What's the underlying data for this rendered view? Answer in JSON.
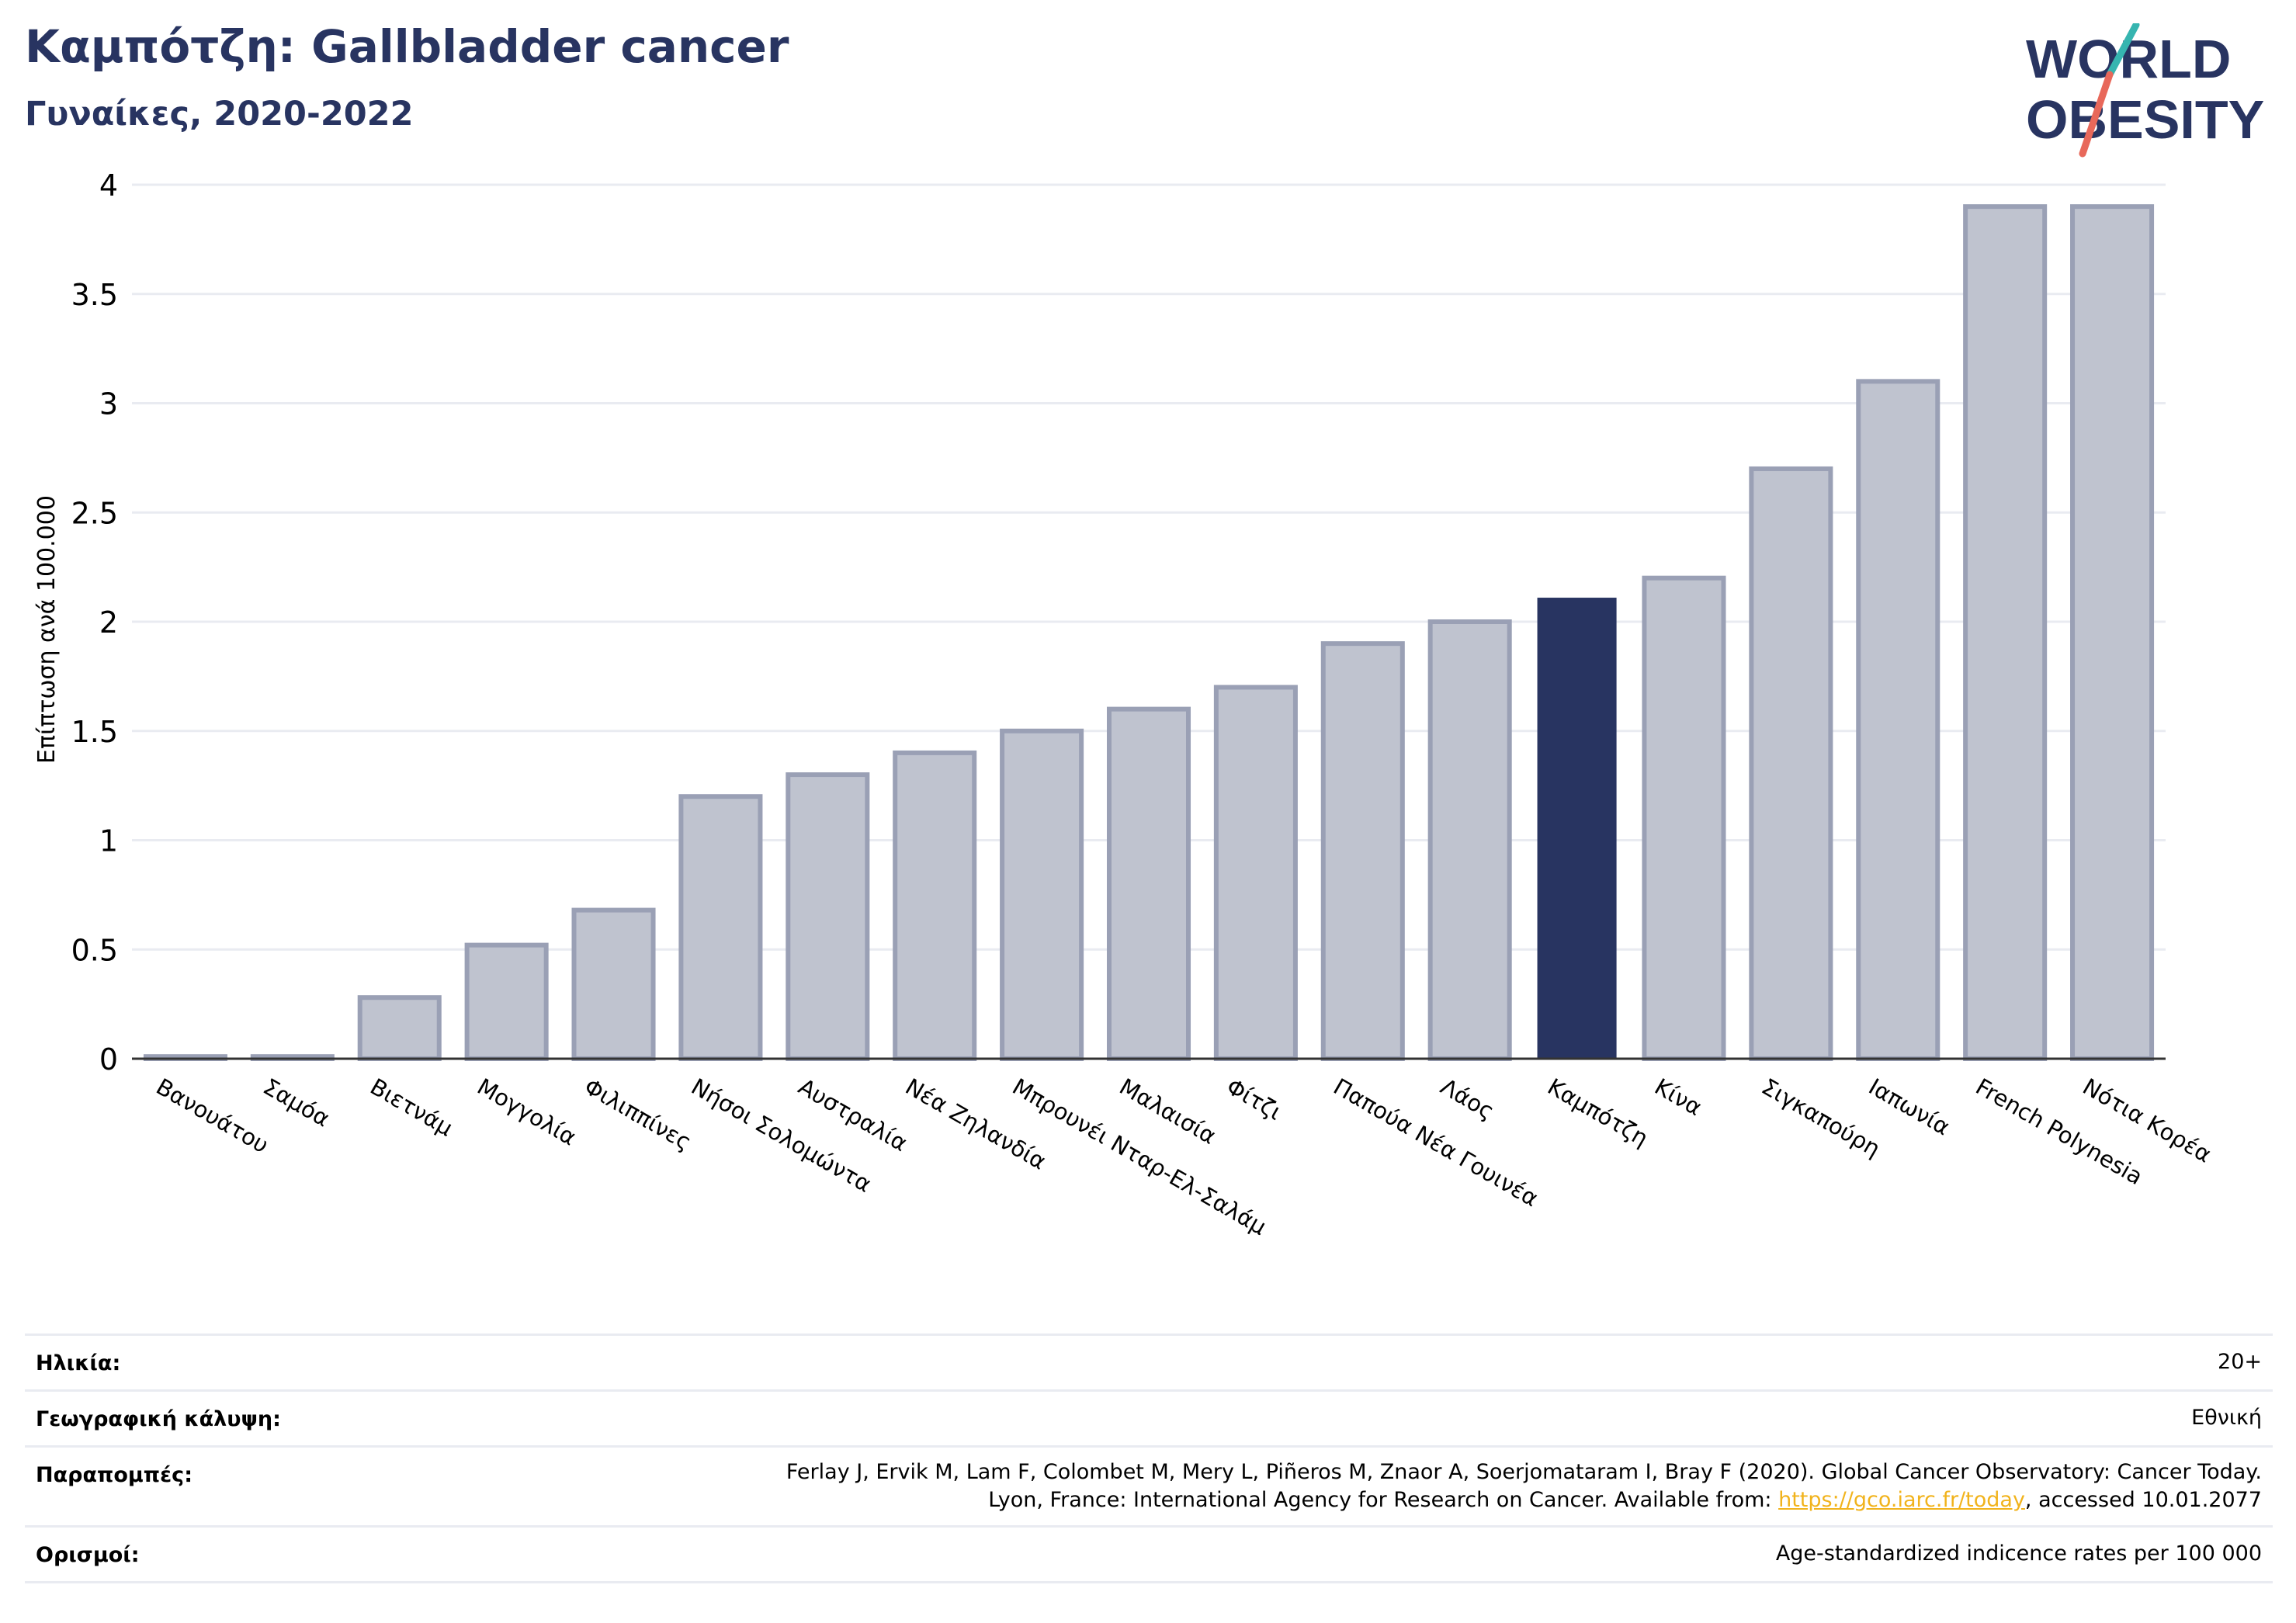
{
  "header": {
    "title": "Καμπότζη: Gallbladder cancer",
    "subtitle": "Γυναίκες, 2020-2022"
  },
  "logo": {
    "line1": "WORLD",
    "line2": "OBESITY"
  },
  "colors": {
    "highlight": "#283461",
    "bar_fill": "#bfc3cf",
    "bar_stroke": "#9aa0b5",
    "grid": "#e9ebf1",
    "title": "#283461",
    "logo_slash_teal": "#36b5b0",
    "logo_slash_coral": "#e8685a",
    "link": "#f1b31c"
  },
  "chart_data": {
    "type": "bar",
    "ylabel": "Επίπτωση ανά 100.000",
    "xlabel": "",
    "ylim": [
      0,
      4
    ],
    "yticks": [
      "0",
      "0.5",
      "1",
      "1.5",
      "2",
      "2.5",
      "3",
      "3.5",
      "4"
    ],
    "grid": true,
    "categories": [
      "Βανουάτου",
      "Σαμόα",
      "Βιετνάμ",
      "Μογγολία",
      "Φιλιππίνες",
      "Νήσοι Σολομώντα",
      "Αυστραλία",
      "Νέα Ζηλανδία",
      "Μπρουνέι Νταρ-Ελ-Σαλάμ",
      "Μαλαισία",
      "Φίτζι",
      "Παπούα Νέα Γουινέα",
      "Λάος",
      "Καμπότζη",
      "Κίνα",
      "Σιγκαπούρη",
      "Ιαπωνία",
      "French Polynesia",
      "Νότια Κορέα"
    ],
    "values": [
      0.01,
      0.01,
      0.28,
      0.52,
      0.68,
      1.2,
      1.3,
      1.4,
      1.5,
      1.6,
      1.7,
      1.9,
      2.0,
      2.11,
      2.2,
      2.7,
      3.1,
      3.9,
      3.9
    ],
    "highlight": "Καμπότζη"
  },
  "meta": {
    "age_label": "Ηλικία:",
    "age_value": "20+",
    "coverage_label": "Γεωγραφική κάλυψη:",
    "coverage_value": "Εθνική",
    "refs_label": "Παραπομπές:",
    "refs_line1": "Ferlay J, Ervik M, Lam F, Colombet M, Mery L, Piñeros M, Znaor A, Soerjomataram I, Bray F (2020). Global Cancer Observatory: Cancer Today.",
    "refs_line2_pre": "Lyon, France: International Agency for Research on Cancer. Available from: ",
    "refs_link": "https://gco.iarc.fr/today",
    "refs_line2_post": ", accessed 10.01.2077",
    "defs_label": "Ορισμοί:",
    "defs_value": "Age-standardized indicence rates per 100 000"
  }
}
